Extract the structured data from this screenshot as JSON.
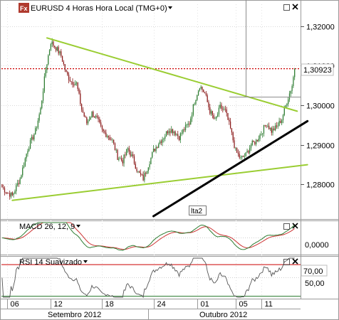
{
  "window": {
    "app_icon": "fx-icon",
    "app_icon_text": "Fx",
    "title": "EURUSD 4 Horas Hora Local (TMG+0)",
    "title_dropdown_icon": "triangle-down-icon"
  },
  "price_panel": {
    "current_price_label": "1,30923",
    "drawing_label": "lta2",
    "control_icons": [
      "square-icon",
      "close-icon"
    ]
  },
  "macd_panel": {
    "title": "MACD 26, 12, 9",
    "dropdown_icon": "triangle-down-icon",
    "control_icons": [
      "square-icon",
      "close-icon"
    ],
    "tick_label": "0,0000"
  },
  "rsi_panel": {
    "title": "RSI 14 Suavizado",
    "dropdown_icon": "triangle-down-icon",
    "control_icons": [
      "square-icon",
      "close-icon"
    ],
    "level_label": "70,00",
    "tick_label": "50,00"
  },
  "time_axis": {
    "day_ticks": [
      "06",
      "12",
      "18",
      "24",
      "01",
      "05",
      "11"
    ],
    "month_labels": [
      "Setembro 2012",
      "Outubro 2012"
    ]
  },
  "colors": {
    "bull_candle": "#2e7d32",
    "bear_candle": "#8b1a1a",
    "trendline_green": "#9acd32",
    "trendline_black": "#000000",
    "price_line": "#cc0000",
    "macd_line": "#2e7d32",
    "signal_line": "#cc3333",
    "rsi_line": "#555555",
    "level_line": "#cc0000"
  },
  "chart_data": {
    "type": "candlestick",
    "symbol": "EURUSD",
    "timeframe": "4 Horas",
    "y_ticks": [
      1.28,
      1.29,
      1.3,
      1.31,
      1.32
    ],
    "y_tick_labels": [
      "1,28000",
      "1,29000",
      "1,30000",
      "1,31000",
      "1,32000"
    ],
    "current_price": 1.30923,
    "ylim": [
      1.272,
      1.3255
    ],
    "guide_levels": [
      {
        "value": 1.30923,
        "style": "dotted",
        "color": "#cc0000"
      }
    ],
    "close_path": [
      [
        0,
        1.2793
      ],
      [
        4,
        1.278
      ],
      [
        8,
        1.2772
      ],
      [
        14,
        1.2815
      ],
      [
        20,
        1.289
      ],
      [
        26,
        1.2935
      ],
      [
        30,
        1.299
      ],
      [
        34,
        1.309
      ],
      [
        38,
        1.316
      ],
      [
        42,
        1.3145
      ],
      [
        46,
        1.3125
      ],
      [
        50,
        1.308
      ],
      [
        54,
        1.306
      ],
      [
        58,
        1.3055
      ],
      [
        62,
        1.299
      ],
      [
        66,
        1.2955
      ],
      [
        70,
        1.298
      ],
      [
        74,
        1.2965
      ],
      [
        78,
        1.2935
      ],
      [
        82,
        1.2925
      ],
      [
        86,
        1.291
      ],
      [
        90,
        1.287
      ],
      [
        94,
        1.286
      ],
      [
        98,
        1.289
      ],
      [
        102,
        1.2865
      ],
      [
        106,
        1.283
      ],
      [
        110,
        1.2815
      ],
      [
        114,
        1.285
      ],
      [
        118,
        1.2885
      ],
      [
        122,
        1.2905
      ],
      [
        126,
        1.292
      ],
      [
        130,
        1.294
      ],
      [
        134,
        1.2935
      ],
      [
        138,
        1.292
      ],
      [
        142,
        1.294
      ],
      [
        146,
        1.2955
      ],
      [
        150,
        1.301
      ],
      [
        154,
        1.305
      ],
      [
        158,
        1.303
      ],
      [
        162,
        1.2985
      ],
      [
        166,
        1.296
      ],
      [
        170,
        1.2995
      ],
      [
        174,
        1.2985
      ],
      [
        178,
        1.294
      ],
      [
        182,
        1.2885
      ],
      [
        186,
        1.2865
      ],
      [
        190,
        1.2875
      ],
      [
        194,
        1.29
      ],
      [
        198,
        1.291
      ],
      [
        202,
        1.293
      ],
      [
        206,
        1.2955
      ],
      [
        210,
        1.2935
      ],
      [
        214,
        1.2945
      ],
      [
        218,
        1.2965
      ],
      [
        222,
        1.301
      ],
      [
        226,
        1.305
      ],
      [
        228,
        1.3092
      ]
    ],
    "candles": [],
    "drawings": [
      {
        "type": "trendline",
        "name": "upper-green",
        "from": [
          35,
          1.317
        ],
        "to": [
          230,
          1.2985
        ]
      },
      {
        "type": "trendline",
        "name": "lower-green",
        "from": [
          8,
          1.276
        ],
        "to": [
          238,
          1.285
        ]
      },
      {
        "type": "trendline",
        "name": "lta2",
        "from": [
          118,
          1.272
        ],
        "to": [
          238,
          1.296
        ]
      }
    ],
    "x_tick_index": [
      4,
      38,
      78,
      118,
      152,
      182,
      202
    ],
    "month_index": [
      30,
      160
    ],
    "bars": 232,
    "indicators": {
      "macd": {
        "params": [
          26,
          12,
          9
        ],
        "ylim": [
          -0.004,
          0.004
        ],
        "zero": 0.0
      },
      "rsi": {
        "period": 14,
        "smoothed": true,
        "ylim": [
          20,
          80
        ],
        "level": 70
      }
    }
  }
}
